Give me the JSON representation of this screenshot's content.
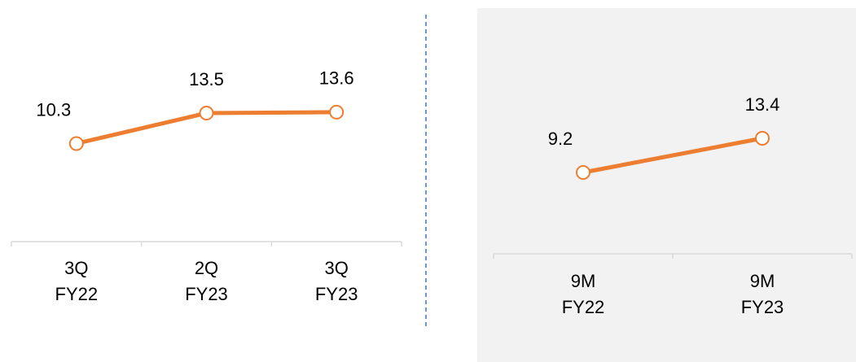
{
  "chart_data": [
    {
      "type": "line",
      "categories": [
        "3Q FY22",
        "2Q FY23",
        "3Q FY23"
      ],
      "values": [
        10.3,
        13.5,
        13.6
      ],
      "color": "#ed7d31"
    },
    {
      "type": "line",
      "categories": [
        "9M FY22",
        "9M FY23"
      ],
      "values": [
        9.2,
        13.4
      ],
      "color": "#ed7d31"
    }
  ]
}
